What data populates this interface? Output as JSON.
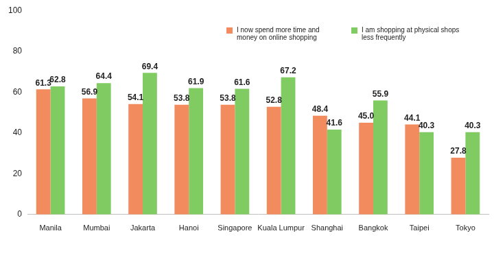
{
  "chart_data": {
    "type": "bar",
    "categories": [
      "Manila",
      "Mumbai",
      "Jakarta",
      "Hanoi",
      "Singapore",
      "Kuala Lumpur",
      "Shanghai",
      "Bangkok",
      "Taipei",
      "Tokyo"
    ],
    "series": [
      {
        "name": "I now spend more time and money on online shopping",
        "color": "#f28c5f",
        "values": [
          61.3,
          56.9,
          54.1,
          53.8,
          53.8,
          52.8,
          48.4,
          45.0,
          44.1,
          27.8
        ],
        "value_labels": [
          "61.3",
          "56.9",
          "54.1",
          "53.8",
          "53.8",
          "52.8",
          "48.4",
          "45.0",
          "44.1",
          "27.8"
        ]
      },
      {
        "name": "I am shopping at physical shops less frequently",
        "color": "#80cc62",
        "values": [
          62.8,
          64.4,
          69.4,
          61.9,
          61.6,
          67.2,
          41.6,
          55.9,
          40.3,
          40.3
        ],
        "value_labels": [
          "62.8",
          "64.4",
          "69.4",
          "61.9",
          "61.6",
          "67.2",
          "41.6",
          "55.9",
          "40.3",
          "40.3"
        ]
      }
    ],
    "ylim": [
      0,
      100
    ],
    "yticks": [
      0,
      20,
      40,
      60,
      80,
      100
    ],
    "grid": false,
    "legend": "top-right",
    "data_labels": true
  }
}
